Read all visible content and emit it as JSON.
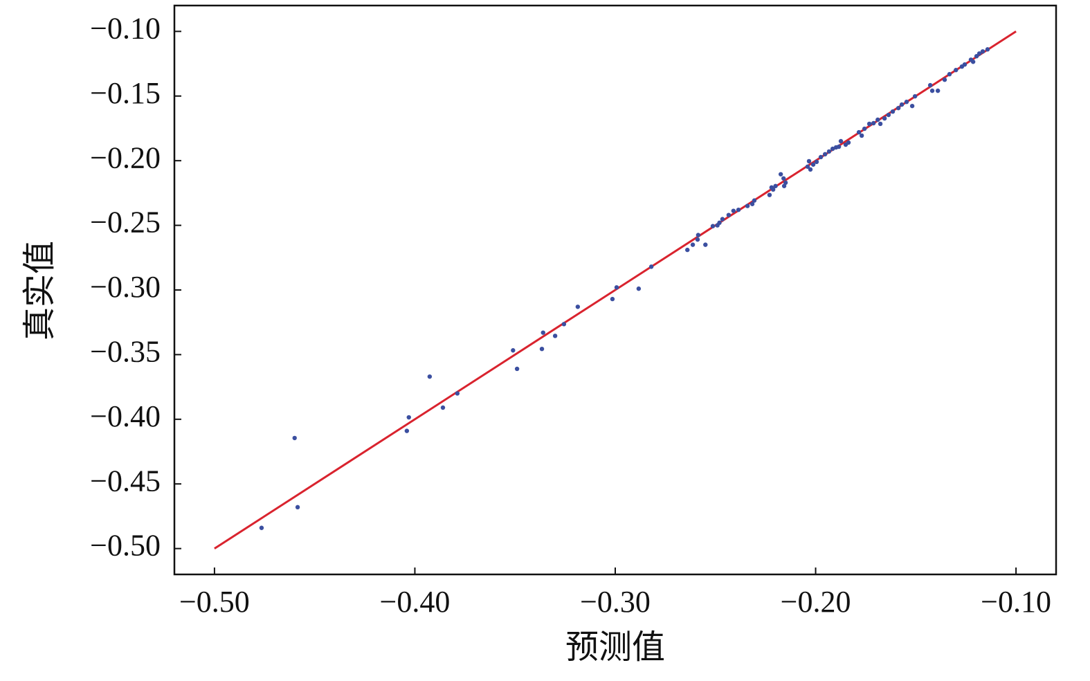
{
  "chart_data": {
    "type": "scatter",
    "x_label": "预测值",
    "y_label": "真实值",
    "color": "#3b4fa0",
    "x": [
      -0.4765,
      -0.46,
      -0.4585,
      -0.404,
      -0.403,
      -0.3926,
      -0.386,
      -0.3788,
      -0.351,
      -0.349,
      -0.3366,
      -0.336,
      -0.33,
      -0.3256,
      -0.3187,
      -0.3014,
      -0.2993,
      -0.2883,
      -0.282,
      -0.264,
      -0.2613,
      -0.2586,
      -0.2589,
      -0.255,
      -0.2513,
      -0.249,
      -0.248,
      -0.2465,
      -0.2434,
      -0.241,
      -0.2385,
      -0.234,
      -0.2316,
      -0.2306,
      -0.223,
      -0.222,
      -0.2212,
      -0.22,
      -0.2174,
      -0.216,
      -0.2157,
      -0.215,
      -0.204,
      -0.2033,
      -0.2026,
      -0.2012,
      -0.1995,
      -0.1974,
      -0.1953,
      -0.1933,
      -0.1915,
      -0.1898,
      -0.1884,
      -0.1874,
      -0.185,
      -0.1836,
      -0.1784,
      -0.177,
      -0.1756,
      -0.1732,
      -0.1711,
      -0.169,
      -0.1677,
      -0.1656,
      -0.1636,
      -0.1615,
      -0.1587,
      -0.157,
      -0.1546,
      -0.1518,
      -0.1504,
      -0.1428,
      -0.1418,
      -0.139,
      -0.1356,
      -0.1332,
      -0.13,
      -0.127,
      -0.1256,
      -0.1225,
      -0.1214,
      -0.1197,
      -0.1183,
      -0.1166,
      -0.1142
    ],
    "values": [
      -0.484,
      -0.4145,
      -0.468,
      -0.409,
      -0.3985,
      -0.367,
      -0.391,
      -0.38,
      -0.3467,
      -0.361,
      -0.3456,
      -0.333,
      -0.3355,
      -0.3264,
      -0.313,
      -0.307,
      -0.298,
      -0.299,
      -0.282,
      -0.269,
      -0.265,
      -0.2575,
      -0.261,
      -0.265,
      -0.2506,
      -0.25,
      -0.248,
      -0.2452,
      -0.242,
      -0.2388,
      -0.238,
      -0.235,
      -0.2335,
      -0.2308,
      -0.2265,
      -0.2207,
      -0.2223,
      -0.2196,
      -0.2105,
      -0.2137,
      -0.2196,
      -0.217,
      -0.2046,
      -0.2004,
      -0.2068,
      -0.203,
      -0.2009,
      -0.1972,
      -0.195,
      -0.1929,
      -0.1908,
      -0.1897,
      -0.1892,
      -0.1849,
      -0.1876,
      -0.186,
      -0.178,
      -0.1806,
      -0.1753,
      -0.1715,
      -0.171,
      -0.1683,
      -0.1715,
      -0.1673,
      -0.1646,
      -0.162,
      -0.1593,
      -0.1566,
      -0.1545,
      -0.1577,
      -0.1502,
      -0.1416,
      -0.1459,
      -0.1459,
      -0.1374,
      -0.1331,
      -0.1299,
      -0.1272,
      -0.1256,
      -0.1219,
      -0.1235,
      -0.1192,
      -0.1171,
      -0.1155,
      -0.1139
    ],
    "fit_line": {
      "color": "#d9232e",
      "x": [
        -0.5,
        -0.1
      ],
      "values": [
        -0.5,
        -0.1
      ]
    },
    "xlim": [
      -0.52,
      -0.08
    ],
    "ylim": [
      -0.52,
      -0.08
    ],
    "xticks": [
      {
        "value": -0.5,
        "label": "−0.50"
      },
      {
        "value": -0.4,
        "label": "−0.40"
      },
      {
        "value": -0.3,
        "label": "−0.30"
      },
      {
        "value": -0.2,
        "label": "−0.20"
      },
      {
        "value": -0.1,
        "label": "−0.10"
      }
    ],
    "yticks": [
      {
        "value": -0.1,
        "label": "−0.10"
      },
      {
        "value": -0.15,
        "label": "−0.15"
      },
      {
        "value": -0.2,
        "label": "−0.20"
      },
      {
        "value": -0.25,
        "label": "−0.25"
      },
      {
        "value": -0.3,
        "label": "−0.30"
      },
      {
        "value": -0.35,
        "label": "−0.35"
      },
      {
        "value": -0.4,
        "label": "−0.40"
      },
      {
        "value": -0.45,
        "label": "−0.45"
      },
      {
        "value": -0.5,
        "label": "−0.50"
      }
    ]
  }
}
